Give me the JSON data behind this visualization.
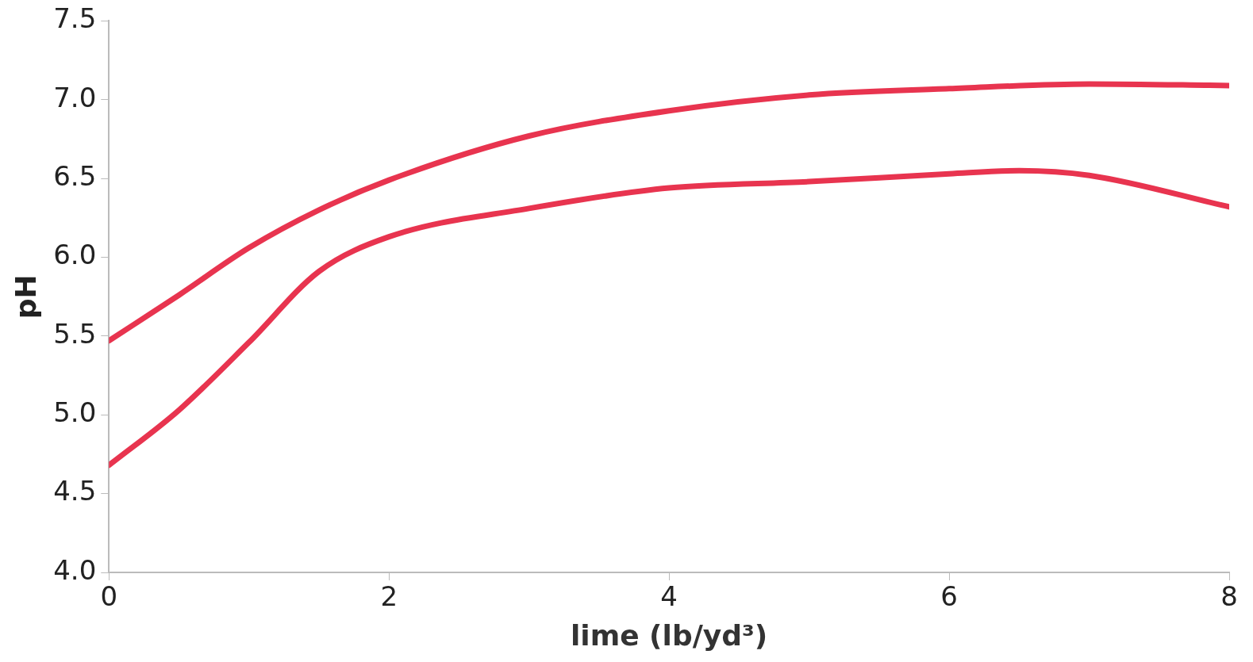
{
  "chart_data": {
    "type": "line",
    "xlabel": "lime (lb/yd³)",
    "ylabel": "pH",
    "xlim": [
      0,
      8
    ],
    "xticks": [
      0,
      2,
      4,
      6,
      8
    ],
    "ylim": [
      4.0,
      7.5
    ],
    "yticks": [
      {
        "value": 4.0,
        "label": "4.0"
      },
      {
        "value": 4.5,
        "label": "4.5"
      },
      {
        "value": 5.0,
        "label": "5.0"
      },
      {
        "value": 5.5,
        "label": "5.5"
      },
      {
        "value": 6.0,
        "label": "6.0"
      },
      {
        "value": 6.5,
        "label": "6.5"
      },
      {
        "value": 7.0,
        "label": "7.0"
      },
      {
        "value": 7.5,
        "label": "7.5"
      }
    ],
    "grid": false,
    "legend": false,
    "marker": "none",
    "line_style": "solid",
    "series": [
      {
        "color": "#e8344f",
        "x": [
          0,
          0.5,
          1,
          1.5,
          2,
          3,
          4,
          5,
          6,
          7,
          8
        ],
        "values": [
          5.47,
          5.76,
          6.06,
          6.3,
          6.49,
          6.77,
          6.93,
          7.03,
          7.07,
          7.1,
          7.09
        ]
      },
      {
        "color": "#e8344f",
        "x": [
          0,
          0.5,
          1,
          1.5,
          2,
          3,
          4,
          5,
          6,
          6.5,
          7,
          8
        ],
        "values": [
          4.68,
          5.03,
          5.46,
          5.91,
          6.13,
          6.31,
          6.44,
          6.48,
          6.53,
          6.55,
          6.52,
          6.32
        ]
      }
    ]
  }
}
